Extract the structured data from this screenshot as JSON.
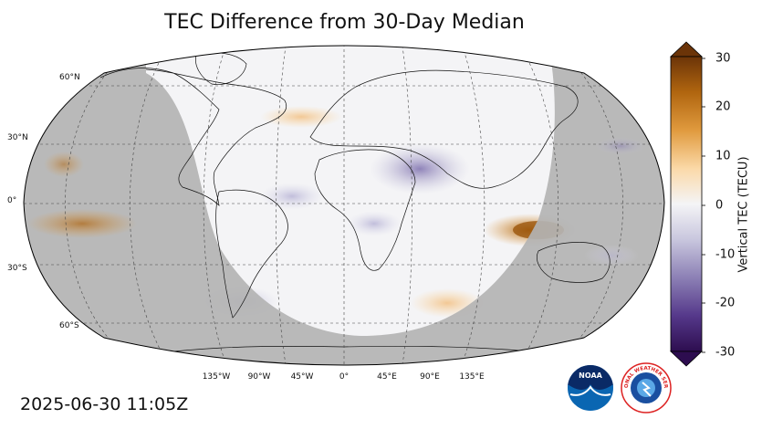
{
  "title": "TEC Difference from 30-Day Median",
  "timestamp": "2025-06-30 11:05Z",
  "colorbar": {
    "label": "Vertical TEC (TECU)",
    "ticks": [
      "30",
      "20",
      "10",
      "0",
      "-10",
      "-20",
      "-30"
    ],
    "range": [
      -30,
      30
    ],
    "extend": "both"
  },
  "map": {
    "projection": "robinson",
    "lat_labels": [
      "60°N",
      "30°N",
      "0°",
      "30°S",
      "60°S"
    ],
    "lon_labels": [
      "135°W",
      "90°W",
      "45°W",
      "0°",
      "45°E",
      "90°E",
      "135°E"
    ],
    "night_color": "#b3b3b3",
    "gridlines": "dashed"
  },
  "logos": {
    "noaa_text": "NOAA",
    "nws_text": "NATIONAL WEATHER SERVICE"
  },
  "colors": {
    "positive": "#8a4a0a",
    "neutral": "#f4f4f6",
    "negative": "#2d0d4f"
  }
}
